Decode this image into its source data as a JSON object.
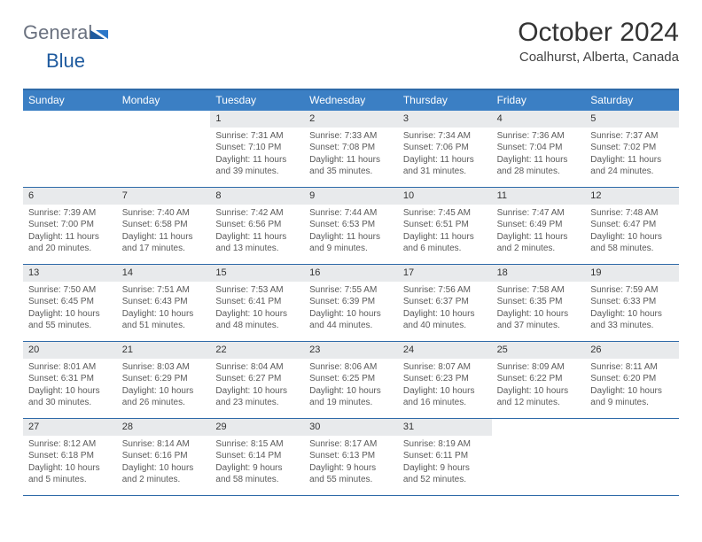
{
  "colors": {
    "header_blue": "#3b7fc4",
    "border_blue": "#2e6aa8",
    "daynum_bg": "#e8eaec",
    "logo_gray": "#6b7280",
    "logo_blue": "#1e5a9e",
    "body_text": "#5a5a5a"
  },
  "logo": {
    "part1": "General",
    "part2": "Blue"
  },
  "title": "October 2024",
  "location": "Coalhurst, Alberta, Canada",
  "dow": [
    "Sunday",
    "Monday",
    "Tuesday",
    "Wednesday",
    "Thursday",
    "Friday",
    "Saturday"
  ],
  "weeks": [
    [
      {
        "blank": true
      },
      {
        "blank": true
      },
      {
        "n": "1",
        "sr": "Sunrise: 7:31 AM",
        "ss": "Sunset: 7:10 PM",
        "d1": "Daylight: 11 hours",
        "d2": "and 39 minutes."
      },
      {
        "n": "2",
        "sr": "Sunrise: 7:33 AM",
        "ss": "Sunset: 7:08 PM",
        "d1": "Daylight: 11 hours",
        "d2": "and 35 minutes."
      },
      {
        "n": "3",
        "sr": "Sunrise: 7:34 AM",
        "ss": "Sunset: 7:06 PM",
        "d1": "Daylight: 11 hours",
        "d2": "and 31 minutes."
      },
      {
        "n": "4",
        "sr": "Sunrise: 7:36 AM",
        "ss": "Sunset: 7:04 PM",
        "d1": "Daylight: 11 hours",
        "d2": "and 28 minutes."
      },
      {
        "n": "5",
        "sr": "Sunrise: 7:37 AM",
        "ss": "Sunset: 7:02 PM",
        "d1": "Daylight: 11 hours",
        "d2": "and 24 minutes."
      }
    ],
    [
      {
        "n": "6",
        "sr": "Sunrise: 7:39 AM",
        "ss": "Sunset: 7:00 PM",
        "d1": "Daylight: 11 hours",
        "d2": "and 20 minutes."
      },
      {
        "n": "7",
        "sr": "Sunrise: 7:40 AM",
        "ss": "Sunset: 6:58 PM",
        "d1": "Daylight: 11 hours",
        "d2": "and 17 minutes."
      },
      {
        "n": "8",
        "sr": "Sunrise: 7:42 AM",
        "ss": "Sunset: 6:56 PM",
        "d1": "Daylight: 11 hours",
        "d2": "and 13 minutes."
      },
      {
        "n": "9",
        "sr": "Sunrise: 7:44 AM",
        "ss": "Sunset: 6:53 PM",
        "d1": "Daylight: 11 hours",
        "d2": "and 9 minutes."
      },
      {
        "n": "10",
        "sr": "Sunrise: 7:45 AM",
        "ss": "Sunset: 6:51 PM",
        "d1": "Daylight: 11 hours",
        "d2": "and 6 minutes."
      },
      {
        "n": "11",
        "sr": "Sunrise: 7:47 AM",
        "ss": "Sunset: 6:49 PM",
        "d1": "Daylight: 11 hours",
        "d2": "and 2 minutes."
      },
      {
        "n": "12",
        "sr": "Sunrise: 7:48 AM",
        "ss": "Sunset: 6:47 PM",
        "d1": "Daylight: 10 hours",
        "d2": "and 58 minutes."
      }
    ],
    [
      {
        "n": "13",
        "sr": "Sunrise: 7:50 AM",
        "ss": "Sunset: 6:45 PM",
        "d1": "Daylight: 10 hours",
        "d2": "and 55 minutes."
      },
      {
        "n": "14",
        "sr": "Sunrise: 7:51 AM",
        "ss": "Sunset: 6:43 PM",
        "d1": "Daylight: 10 hours",
        "d2": "and 51 minutes."
      },
      {
        "n": "15",
        "sr": "Sunrise: 7:53 AM",
        "ss": "Sunset: 6:41 PM",
        "d1": "Daylight: 10 hours",
        "d2": "and 48 minutes."
      },
      {
        "n": "16",
        "sr": "Sunrise: 7:55 AM",
        "ss": "Sunset: 6:39 PM",
        "d1": "Daylight: 10 hours",
        "d2": "and 44 minutes."
      },
      {
        "n": "17",
        "sr": "Sunrise: 7:56 AM",
        "ss": "Sunset: 6:37 PM",
        "d1": "Daylight: 10 hours",
        "d2": "and 40 minutes."
      },
      {
        "n": "18",
        "sr": "Sunrise: 7:58 AM",
        "ss": "Sunset: 6:35 PM",
        "d1": "Daylight: 10 hours",
        "d2": "and 37 minutes."
      },
      {
        "n": "19",
        "sr": "Sunrise: 7:59 AM",
        "ss": "Sunset: 6:33 PM",
        "d1": "Daylight: 10 hours",
        "d2": "and 33 minutes."
      }
    ],
    [
      {
        "n": "20",
        "sr": "Sunrise: 8:01 AM",
        "ss": "Sunset: 6:31 PM",
        "d1": "Daylight: 10 hours",
        "d2": "and 30 minutes."
      },
      {
        "n": "21",
        "sr": "Sunrise: 8:03 AM",
        "ss": "Sunset: 6:29 PM",
        "d1": "Daylight: 10 hours",
        "d2": "and 26 minutes."
      },
      {
        "n": "22",
        "sr": "Sunrise: 8:04 AM",
        "ss": "Sunset: 6:27 PM",
        "d1": "Daylight: 10 hours",
        "d2": "and 23 minutes."
      },
      {
        "n": "23",
        "sr": "Sunrise: 8:06 AM",
        "ss": "Sunset: 6:25 PM",
        "d1": "Daylight: 10 hours",
        "d2": "and 19 minutes."
      },
      {
        "n": "24",
        "sr": "Sunrise: 8:07 AM",
        "ss": "Sunset: 6:23 PM",
        "d1": "Daylight: 10 hours",
        "d2": "and 16 minutes."
      },
      {
        "n": "25",
        "sr": "Sunrise: 8:09 AM",
        "ss": "Sunset: 6:22 PM",
        "d1": "Daylight: 10 hours",
        "d2": "and 12 minutes."
      },
      {
        "n": "26",
        "sr": "Sunrise: 8:11 AM",
        "ss": "Sunset: 6:20 PM",
        "d1": "Daylight: 10 hours",
        "d2": "and 9 minutes."
      }
    ],
    [
      {
        "n": "27",
        "sr": "Sunrise: 8:12 AM",
        "ss": "Sunset: 6:18 PM",
        "d1": "Daylight: 10 hours",
        "d2": "and 5 minutes."
      },
      {
        "n": "28",
        "sr": "Sunrise: 8:14 AM",
        "ss": "Sunset: 6:16 PM",
        "d1": "Daylight: 10 hours",
        "d2": "and 2 minutes."
      },
      {
        "n": "29",
        "sr": "Sunrise: 8:15 AM",
        "ss": "Sunset: 6:14 PM",
        "d1": "Daylight: 9 hours",
        "d2": "and 58 minutes."
      },
      {
        "n": "30",
        "sr": "Sunrise: 8:17 AM",
        "ss": "Sunset: 6:13 PM",
        "d1": "Daylight: 9 hours",
        "d2": "and 55 minutes."
      },
      {
        "n": "31",
        "sr": "Sunrise: 8:19 AM",
        "ss": "Sunset: 6:11 PM",
        "d1": "Daylight: 9 hours",
        "d2": "and 52 minutes."
      },
      {
        "blank": true
      },
      {
        "blank": true
      }
    ]
  ]
}
